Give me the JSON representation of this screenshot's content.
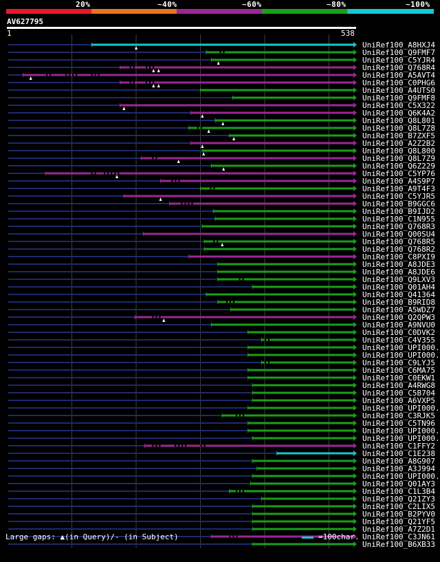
{
  "coverage_scale": {
    "labels": [
      "20%",
      "~40%",
      "~60%",
      "~80%",
      "~100%"
    ],
    "colors": [
      "#e8192c",
      "#e8731e",
      "#9b2796",
      "#19a019",
      "#14c8d2"
    ]
  },
  "query": {
    "name": "AV627795",
    "start_label": "1",
    "end_label": "538",
    "length": 538
  },
  "colors": {
    "background": "#000000",
    "gap_line": "#1e2a6e",
    "grid": "#404040",
    "purple": "#9b2796",
    "green": "#19a019",
    "cyan": "#14c8d2",
    "text": "#ffffff"
  },
  "chart_data": {
    "type": "alignment-overview",
    "x_axis": {
      "min": 1,
      "max": 538,
      "gridlines": [
        100,
        200,
        300,
        400,
        500
      ]
    },
    "hits": [
      {
        "name": "UniRef100_A8HXJ4",
        "start": 131,
        "end": 538,
        "color": "cyan",
        "query_gaps": [
          200
        ],
        "dashes": []
      },
      {
        "name": "UniRef100_Q9FMF7",
        "start": 309,
        "end": 538,
        "color": "green",
        "query_gaps": [],
        "dashes": [
          [
            330,
            340
          ]
        ]
      },
      {
        "name": "UniRef100_C5YJR4",
        "start": 317,
        "end": 538,
        "color": "green",
        "query_gaps": [
          328
        ],
        "dashes": []
      },
      {
        "name": "UniRef100_Q768R4",
        "start": 175,
        "end": 538,
        "color": "purple",
        "query_gaps": [
          227,
          235
        ],
        "dashes": [
          [
            190,
            200
          ],
          [
            215,
            230
          ]
        ]
      },
      {
        "name": "UniRef100_A5AVT4",
        "start": 24,
        "end": 538,
        "color": "purple",
        "query_gaps": [
          36
        ],
        "dashes": [
          [
            60,
            70
          ],
          [
            90,
            110
          ],
          [
            130,
            145
          ]
        ]
      },
      {
        "name": "UniRef100_C0PHG6",
        "start": 175,
        "end": 538,
        "color": "purple",
        "query_gaps": [
          227,
          235
        ],
        "dashes": [
          [
            190,
            200
          ],
          [
            215,
            230
          ]
        ]
      },
      {
        "name": "UniRef100_A4UTS0",
        "start": 300,
        "end": 538,
        "color": "green",
        "query_gaps": [],
        "dashes": []
      },
      {
        "name": "UniRef100_Q9FMF8",
        "start": 350,
        "end": 538,
        "color": "green",
        "query_gaps": [],
        "dashes": []
      },
      {
        "name": "UniRef100_C5X322",
        "start": 175,
        "end": 538,
        "color": "purple",
        "query_gaps": [
          181
        ],
        "dashes": []
      },
      {
        "name": "UniRef100_Q6K4A2",
        "start": 285,
        "end": 538,
        "color": "purple",
        "query_gaps": [
          303
        ],
        "dashes": []
      },
      {
        "name": "UniRef100_Q8L801",
        "start": 323,
        "end": 538,
        "color": "green",
        "query_gaps": [
          335
        ],
        "dashes": []
      },
      {
        "name": "UniRef100_Q8L7Z8",
        "start": 282,
        "end": 538,
        "color": "green",
        "query_gaps": [
          313
        ],
        "dashes": [
          [
            295,
            305
          ]
        ]
      },
      {
        "name": "UniRef100_B7ZXF5",
        "start": 345,
        "end": 538,
        "color": "green",
        "query_gaps": [
          352
        ],
        "dashes": []
      },
      {
        "name": "UniRef100_A2Z2B2",
        "start": 285,
        "end": 538,
        "color": "purple",
        "query_gaps": [
          303
        ],
        "dashes": []
      },
      {
        "name": "UniRef100_Q8L800",
        "start": 303,
        "end": 538,
        "color": "green",
        "query_gaps": [
          305
        ],
        "dashes": []
      },
      {
        "name": "UniRef100_Q8L7Z9",
        "start": 208,
        "end": 538,
        "color": "purple",
        "query_gaps": [
          266
        ],
        "dashes": [
          [
            225,
            235
          ]
        ]
      },
      {
        "name": "UniRef100_Q6Z229",
        "start": 317,
        "end": 538,
        "color": "green",
        "query_gaps": [
          336
        ],
        "dashes": []
      },
      {
        "name": "UniRef100_C5YP76",
        "start": 59,
        "end": 538,
        "color": "purple",
        "query_gaps": [
          170
        ],
        "dashes": [
          [
            130,
            140
          ],
          [
            150,
            175
          ]
        ]
      },
      {
        "name": "UniRef100_A4S9P7",
        "start": 238,
        "end": 538,
        "color": "purple",
        "query_gaps": [],
        "dashes": [
          [
            255,
            270
          ]
        ]
      },
      {
        "name": "UniRef100_A9T4F3",
        "start": 300,
        "end": 538,
        "color": "green",
        "query_gaps": [],
        "dashes": [
          [
            315,
            325
          ]
        ]
      },
      {
        "name": "UniRef100_C5YJR5",
        "start": 181,
        "end": 538,
        "color": "purple",
        "query_gaps": [
          238
        ],
        "dashes": []
      },
      {
        "name": "UniRef100_B9GGC6",
        "start": 252,
        "end": 538,
        "color": "purple",
        "query_gaps": [],
        "dashes": [
          [
            270,
            290
          ]
        ]
      },
      {
        "name": "UniRef100_B9IJD2",
        "start": 320,
        "end": 538,
        "color": "green",
        "query_gaps": [],
        "dashes": []
      },
      {
        "name": "UniRef100_C1N955",
        "start": 323,
        "end": 538,
        "color": "green",
        "query_gaps": [],
        "dashes": []
      },
      {
        "name": "UniRef100_Q768R3",
        "start": 303,
        "end": 538,
        "color": "green",
        "query_gaps": [],
        "dashes": []
      },
      {
        "name": "UniRef100_Q00SU4",
        "start": 211,
        "end": 538,
        "color": "purple",
        "query_gaps": [],
        "dashes": []
      },
      {
        "name": "UniRef100_Q768R5",
        "start": 306,
        "end": 538,
        "color": "green",
        "query_gaps": [
          334
        ],
        "dashes": [
          [
            320,
            330
          ]
        ]
      },
      {
        "name": "UniRef100_Q768R2",
        "start": 306,
        "end": 538,
        "color": "green",
        "query_gaps": [],
        "dashes": []
      },
      {
        "name": "UniRef100_C8PXI9",
        "start": 282,
        "end": 538,
        "color": "purple",
        "query_gaps": [],
        "dashes": []
      },
      {
        "name": "UniRef100_A8JDE3",
        "start": 327,
        "end": 538,
        "color": "green",
        "query_gaps": [],
        "dashes": []
      },
      {
        "name": "UniRef100_A8JDE6",
        "start": 327,
        "end": 538,
        "color": "green",
        "query_gaps": [],
        "dashes": []
      },
      {
        "name": "UniRef100_Q9LXV3",
        "start": 327,
        "end": 538,
        "color": "green",
        "query_gaps": [],
        "dashes": [
          [
            360,
            370
          ]
        ]
      },
      {
        "name": "UniRef100_Q01AH4",
        "start": 381,
        "end": 538,
        "color": "green",
        "query_gaps": [],
        "dashes": []
      },
      {
        "name": "UniRef100_Q41364",
        "start": 309,
        "end": 538,
        "color": "green",
        "query_gaps": [],
        "dashes": []
      },
      {
        "name": "UniRef100_B9RID8",
        "start": 327,
        "end": 538,
        "color": "green",
        "query_gaps": [],
        "dashes": [
          [
            340,
            355
          ]
        ]
      },
      {
        "name": "UniRef100_A5WDZ7",
        "start": 347,
        "end": 538,
        "color": "green",
        "query_gaps": [],
        "dashes": []
      },
      {
        "name": "UniRef100_Q2QPW3",
        "start": 198,
        "end": 538,
        "color": "purple",
        "query_gaps": [
          243
        ],
        "dashes": [
          [
            225,
            240
          ]
        ]
      },
      {
        "name": "UniRef100_A9NVU0",
        "start": 317,
        "end": 538,
        "color": "green",
        "query_gaps": [],
        "dashes": []
      },
      {
        "name": "UniRef100_C0DVK2",
        "start": 374,
        "end": 538,
        "color": "green",
        "query_gaps": [],
        "dashes": []
      },
      {
        "name": "UniRef100_C4V355",
        "start": 395,
        "end": 538,
        "color": "green",
        "query_gaps": [],
        "dashes": [
          [
            400,
            410
          ]
        ]
      },
      {
        "name": "UniRef100_UPI000..",
        "start": 374,
        "end": 538,
        "color": "green",
        "query_gaps": [],
        "dashes": []
      },
      {
        "name": "UniRef100_UPI000..",
        "start": 374,
        "end": 538,
        "color": "green",
        "query_gaps": [],
        "dashes": []
      },
      {
        "name": "UniRef100_C9LYJ5",
        "start": 395,
        "end": 538,
        "color": "green",
        "query_gaps": [],
        "dashes": [
          [
            400,
            410
          ]
        ]
      },
      {
        "name": "UniRef100_C6MA75",
        "start": 374,
        "end": 538,
        "color": "green",
        "query_gaps": [],
        "dashes": []
      },
      {
        "name": "UniRef100_C0EKW1",
        "start": 374,
        "end": 538,
        "color": "green",
        "query_gaps": [],
        "dashes": []
      },
      {
        "name": "UniRef100_A4RWG8",
        "start": 381,
        "end": 538,
        "color": "green",
        "query_gaps": [],
        "dashes": []
      },
      {
        "name": "UniRef100_C5B704",
        "start": 381,
        "end": 538,
        "color": "green",
        "query_gaps": [],
        "dashes": []
      },
      {
        "name": "UniRef100_A6VXP5",
        "start": 381,
        "end": 538,
        "color": "green",
        "query_gaps": [],
        "dashes": []
      },
      {
        "name": "UniRef100_UPI000..",
        "start": 374,
        "end": 538,
        "color": "green",
        "query_gaps": [],
        "dashes": []
      },
      {
        "name": "UniRef100_C3RJK5",
        "start": 334,
        "end": 538,
        "color": "green",
        "query_gaps": [],
        "dashes": [
          [
            355,
            370
          ]
        ]
      },
      {
        "name": "UniRef100_C5TN96",
        "start": 374,
        "end": 538,
        "color": "green",
        "query_gaps": [],
        "dashes": []
      },
      {
        "name": "UniRef100_UPI000..",
        "start": 374,
        "end": 538,
        "color": "green",
        "query_gaps": [],
        "dashes": []
      },
      {
        "name": "UniRef100_UPI000..",
        "start": 381,
        "end": 538,
        "color": "green",
        "query_gaps": [],
        "dashes": []
      },
      {
        "name": "UniRef100_C1FFY2",
        "start": 213,
        "end": 538,
        "color": "purple",
        "query_gaps": [],
        "dashes": [
          [
            225,
            240
          ],
          [
            260,
            280
          ],
          [
            300,
            310
          ]
        ]
      },
      {
        "name": "UniRef100_C1E238",
        "start": 419,
        "end": 538,
        "color": "cyan",
        "query_gaps": [],
        "dashes": []
      },
      {
        "name": "UniRef100_A8G907",
        "start": 381,
        "end": 538,
        "color": "green",
        "query_gaps": [],
        "dashes": []
      },
      {
        "name": "UniRef100_A3J994",
        "start": 388,
        "end": 538,
        "color": "green",
        "query_gaps": [],
        "dashes": []
      },
      {
        "name": "UniRef100_UPI000..",
        "start": 381,
        "end": 538,
        "color": "green",
        "query_gaps": [],
        "dashes": []
      },
      {
        "name": "UniRef100_Q01AY3",
        "start": 378,
        "end": 538,
        "color": "green",
        "query_gaps": [],
        "dashes": []
      },
      {
        "name": "UniRef100_C1L3B4",
        "start": 345,
        "end": 538,
        "color": "green",
        "query_gaps": [],
        "dashes": [
          [
            355,
            370
          ]
        ]
      },
      {
        "name": "UniRef100_Q21ZY3",
        "start": 395,
        "end": 538,
        "color": "green",
        "query_gaps": [],
        "dashes": []
      },
      {
        "name": "UniRef100_C2LIX5",
        "start": 381,
        "end": 538,
        "color": "green",
        "query_gaps": [],
        "dashes": []
      },
      {
        "name": "UniRef100_B2PYV0",
        "start": 381,
        "end": 538,
        "color": "green",
        "query_gaps": [],
        "dashes": []
      },
      {
        "name": "UniRef100_Q21YF5",
        "start": 381,
        "end": 538,
        "color": "green",
        "query_gaps": [],
        "dashes": []
      },
      {
        "name": "UniRef100_A7Z2D1",
        "start": 381,
        "end": 538,
        "color": "green",
        "query_gaps": [],
        "dashes": []
      },
      {
        "name": "UniRef100_C3JN61",
        "start": 317,
        "end": 538,
        "color": "purple",
        "query_gaps": [],
        "dashes": [
          [
            345,
            360
          ]
        ]
      },
      {
        "name": "UniRef100_B6XB33",
        "start": 381,
        "end": 538,
        "color": "green",
        "query_gaps": [],
        "dashes": []
      }
    ]
  },
  "footer": {
    "gaps_label": "Large gaps: ▲(in Query)/- (in Subject)",
    "legend_label": "=100char."
  }
}
